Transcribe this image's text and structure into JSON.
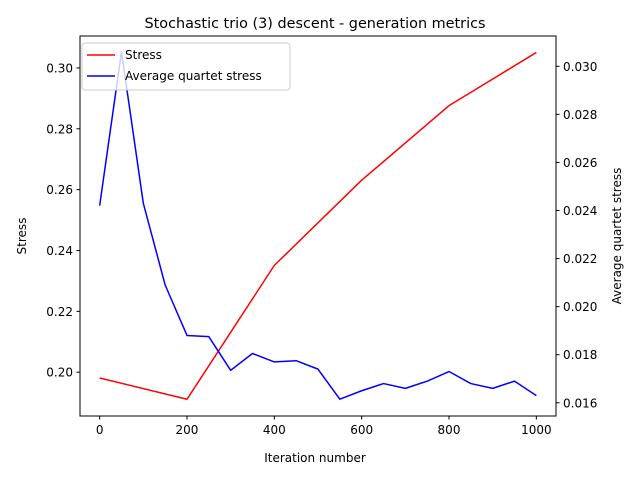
{
  "chart_data": {
    "type": "line",
    "title": "Stochastic trio (3) descent - generation metrics",
    "xlabel": "Iteration number",
    "ylabel_left": "Stress",
    "ylabel_right": "Average quartet stress",
    "xlim": [
      -45,
      1045
    ],
    "ylim_left": [
      0.1856,
      0.3105
    ],
    "ylim_right": [
      0.01545,
      0.03126
    ],
    "x_ticks": [
      0,
      200,
      400,
      600,
      800,
      1000
    ],
    "y_ticks_left": [
      0.2,
      0.22,
      0.24,
      0.26,
      0.28,
      0.3
    ],
    "y_ticks_right": [
      0.016,
      0.018,
      0.02,
      0.022,
      0.024,
      0.026,
      0.028,
      0.03
    ],
    "x_tick_labels": [
      "0",
      "200",
      "400",
      "600",
      "800",
      "1000"
    ],
    "y_tick_labels_left": [
      "0.20",
      "0.22",
      "0.24",
      "0.26",
      "0.28",
      "0.30"
    ],
    "y_tick_labels_right": [
      "0.016",
      "0.018",
      "0.020",
      "0.022",
      "0.024",
      "0.026",
      "0.028",
      "0.030"
    ],
    "grid": false,
    "legend_position": "top-left",
    "series": [
      {
        "name": "Stress",
        "axis": "left",
        "color": "#ff0000",
        "x": [
          0,
          200,
          400,
          600,
          800,
          1000
        ],
        "values": [
          0.1981,
          0.1911,
          0.2351,
          0.2631,
          0.2876,
          0.3051
        ]
      },
      {
        "name": "Average quartet stress",
        "axis": "right",
        "color": "#0000ff",
        "x": [
          0,
          50,
          100,
          150,
          200,
          250,
          300,
          350,
          400,
          450,
          500,
          550,
          600,
          650,
          700,
          750,
          800,
          850,
          900,
          950,
          1000
        ],
        "values": [
          0.0242,
          0.0306,
          0.0243,
          0.0209,
          0.0188,
          0.01875,
          0.01735,
          0.01805,
          0.0177,
          0.01775,
          0.0174,
          0.01615,
          0.0165,
          0.0168,
          0.0166,
          0.0169,
          0.0173,
          0.0168,
          0.0166,
          0.0169,
          0.0163
        ]
      }
    ]
  }
}
